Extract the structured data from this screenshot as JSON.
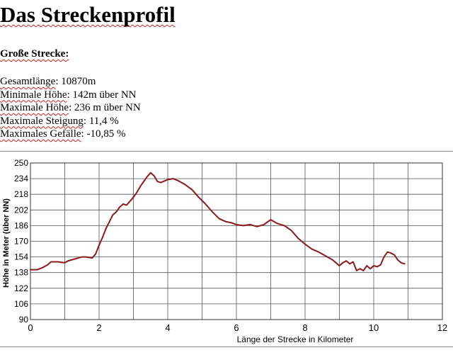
{
  "page": {
    "title": "Das Streckenprofil",
    "section_heading": "Große Strecke:",
    "stats": [
      {
        "label": "Gesamtlänge",
        "value": "10870m"
      },
      {
        "label": "Minimale Höhe",
        "value": "142m über NN"
      },
      {
        "label": "Maximale Höhe",
        "value": "236 m über NN"
      },
      {
        "label": "Maximale Steigung",
        "value": "11,4 %"
      },
      {
        "label": "Maximales Gefälle",
        "value": "-10,85 %"
      }
    ]
  },
  "chart_data": {
    "type": "line",
    "title": "",
    "xlabel": "Länge der Strecke in Kilometer",
    "ylabel": "Höhe in Meter (über NN)",
    "xlim": [
      0,
      12
    ],
    "ylim": [
      90,
      250
    ],
    "x_ticks": [
      "0",
      "2",
      "4",
      "6",
      "8",
      "10",
      "12"
    ],
    "y_ticks": [
      "90",
      "106",
      "122",
      "138",
      "154",
      "170",
      "186",
      "202",
      "218",
      "234",
      "250"
    ],
    "grid": true,
    "line_color": "#8b1a1a",
    "series": [
      {
        "x": [
          0,
          0.2,
          0.35,
          0.5,
          0.6,
          0.8,
          1.0,
          1.1,
          1.3,
          1.5,
          1.6,
          1.8,
          1.9,
          2.0,
          2.1,
          2.2,
          2.3,
          2.4,
          2.5,
          2.6,
          2.7,
          2.8,
          2.9,
          3.0,
          3.1,
          3.2,
          3.3,
          3.4,
          3.5,
          3.6,
          3.7,
          3.8,
          4.0,
          4.15,
          4.3,
          4.5,
          4.7,
          4.9,
          5.1,
          5.3,
          5.5,
          5.7,
          5.85,
          6.0,
          6.2,
          6.4,
          6.6,
          6.8,
          7.0,
          7.2,
          7.4,
          7.6,
          7.8,
          8.0,
          8.2,
          8.4,
          8.6,
          8.8,
          9.0,
          9.1,
          9.2,
          9.3,
          9.4,
          9.5,
          9.6,
          9.7,
          9.8,
          9.9,
          10.0,
          10.1,
          10.2,
          10.3,
          10.4,
          10.5,
          10.6,
          10.7,
          10.8,
          10.9
        ],
        "y": [
          141,
          141,
          143,
          146,
          149,
          149,
          148,
          150,
          152,
          154,
          154,
          153,
          157,
          166,
          174,
          183,
          190,
          197,
          200,
          205,
          208,
          207,
          211,
          215,
          220,
          226,
          231,
          236,
          240,
          237,
          231,
          230,
          233,
          234,
          232,
          228,
          223,
          215,
          208,
          200,
          193,
          190,
          189,
          187,
          186,
          187,
          185,
          187,
          192,
          188,
          186,
          181,
          173,
          167,
          162,
          159,
          155,
          151,
          145,
          148,
          150,
          147,
          149,
          140,
          142,
          140,
          145,
          142,
          145,
          144,
          146,
          154,
          159,
          158,
          156,
          151,
          148,
          147
        ]
      }
    ]
  }
}
